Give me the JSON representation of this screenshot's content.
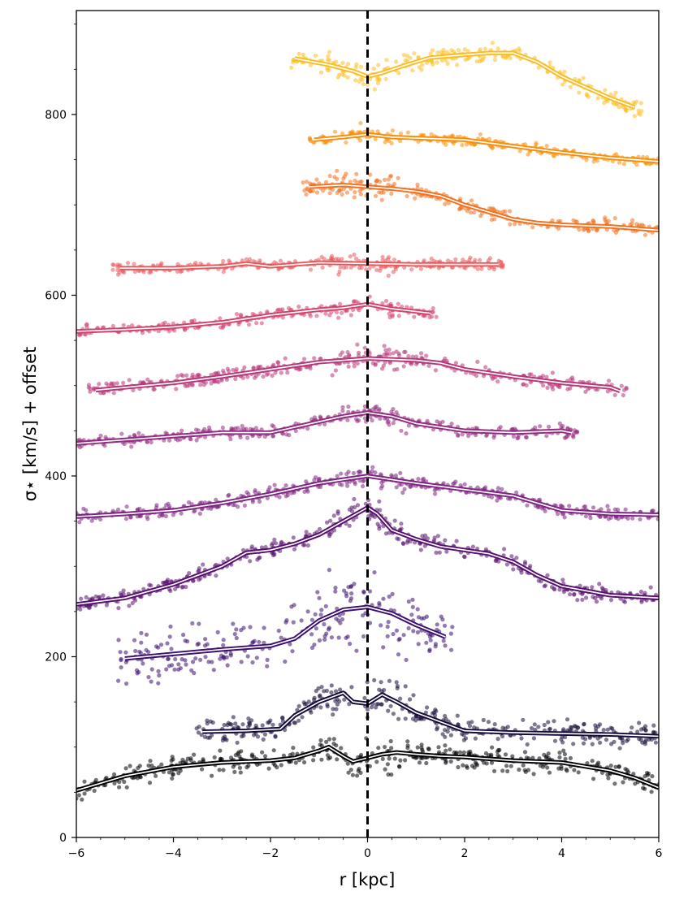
{
  "chart_data": {
    "type": "line",
    "title": "",
    "xlabel": "r [kpc]",
    "ylabel": "σ⋆ [km/s] + offset",
    "xlim": [
      -6,
      6
    ],
    "ylim": [
      0,
      915
    ],
    "xticks": [
      -6,
      -4,
      -2,
      0,
      2,
      4,
      6
    ],
    "xtick_labels": [
      "−6",
      "−4",
      "−2",
      "0",
      "2",
      "4",
      "6"
    ],
    "yticks": [
      0,
      200,
      400,
      600,
      800
    ],
    "ytick_labels": [
      "0",
      "200",
      "400",
      "600",
      "800"
    ],
    "vline": {
      "x": 0,
      "style": "dashed",
      "color": "#000000"
    },
    "series": [
      {
        "name": "profile-1",
        "color": "#000004",
        "profile": [
          [
            -6,
            52
          ],
          [
            -5,
            68
          ],
          [
            -4,
            78
          ],
          [
            -3,
            83
          ],
          [
            -2,
            85
          ],
          [
            -1.5,
            88
          ],
          [
            -1,
            96
          ],
          [
            -0.8,
            100
          ],
          [
            -0.5,
            90
          ],
          [
            -0.3,
            84
          ],
          [
            0,
            88
          ],
          [
            0.3,
            92
          ],
          [
            0.6,
            94
          ],
          [
            1,
            92
          ],
          [
            1.5,
            90
          ],
          [
            2,
            89
          ],
          [
            3,
            85
          ],
          [
            4,
            83
          ],
          [
            5,
            74
          ],
          [
            5.5,
            66
          ],
          [
            6,
            55
          ]
        ],
        "scatter_spread": 10
      },
      {
        "name": "profile-2",
        "color": "#160b39",
        "profile": [
          [
            -3.4,
            117
          ],
          [
            -2.5,
            118
          ],
          [
            -1.8,
            120
          ],
          [
            -1.5,
            135
          ],
          [
            -1,
            150
          ],
          [
            -0.5,
            160
          ],
          [
            -0.3,
            150
          ],
          [
            0,
            148
          ],
          [
            0.3,
            158
          ],
          [
            0.6,
            150
          ],
          [
            1,
            138
          ],
          [
            1.5,
            128
          ],
          [
            2,
            118
          ],
          [
            3,
            116
          ],
          [
            4,
            115
          ],
          [
            5,
            114
          ],
          [
            6,
            112
          ]
        ],
        "scatter_spread": 12
      },
      {
        "name": "profile-3",
        "color": "#3b0f70",
        "profile": [
          [
            -5,
            198
          ],
          [
            -4,
            203
          ],
          [
            -3,
            208
          ],
          [
            -2,
            212
          ],
          [
            -1.5,
            220
          ],
          [
            -1,
            240
          ],
          [
            -0.5,
            252
          ],
          [
            0,
            255
          ],
          [
            0.5,
            248
          ],
          [
            1,
            235
          ],
          [
            1.6,
            222
          ]
        ],
        "scatter_spread": 25
      },
      {
        "name": "profile-4",
        "color": "#57106e",
        "profile": [
          [
            -6,
            258
          ],
          [
            -5,
            265
          ],
          [
            -4,
            280
          ],
          [
            -3,
            300
          ],
          [
            -2.5,
            315
          ],
          [
            -2,
            318
          ],
          [
            -1.5,
            325
          ],
          [
            -1,
            335
          ],
          [
            -0.5,
            350
          ],
          [
            0,
            365
          ],
          [
            0.2,
            358
          ],
          [
            0.5,
            340
          ],
          [
            1,
            330
          ],
          [
            1.5,
            322
          ],
          [
            2,
            318
          ],
          [
            2.5,
            314
          ],
          [
            3,
            305
          ],
          [
            3.5,
            290
          ],
          [
            4,
            278
          ],
          [
            5,
            268
          ],
          [
            6,
            265
          ]
        ],
        "scatter_spread": 8
      },
      {
        "name": "profile-5",
        "color": "#7e2482",
        "profile": [
          [
            -6,
            355
          ],
          [
            -5,
            358
          ],
          [
            -4,
            362
          ],
          [
            -3,
            370
          ],
          [
            -2,
            380
          ],
          [
            -1,
            392
          ],
          [
            -0.5,
            396
          ],
          [
            0,
            400
          ],
          [
            0.5,
            396
          ],
          [
            1,
            392
          ],
          [
            2,
            385
          ],
          [
            3,
            378
          ],
          [
            4,
            362
          ],
          [
            5,
            358
          ],
          [
            6,
            357
          ]
        ],
        "scatter_spread": 6
      },
      {
        "name": "profile-6",
        "color": "#932b80",
        "profile": [
          [
            -6,
            436
          ],
          [
            -5,
            440
          ],
          [
            -4,
            444
          ],
          [
            -3,
            448
          ],
          [
            -2,
            448
          ],
          [
            -1,
            460
          ],
          [
            -0.5,
            466
          ],
          [
            0,
            470
          ],
          [
            0.5,
            466
          ],
          [
            1,
            458
          ],
          [
            2,
            450
          ],
          [
            3,
            448
          ],
          [
            4,
            450
          ],
          [
            4.2,
            448
          ]
        ],
        "scatter_spread": 6
      },
      {
        "name": "profile-7",
        "color": "#b73779",
        "profile": [
          [
            -5.6,
            495
          ],
          [
            -5,
            498
          ],
          [
            -4,
            503
          ],
          [
            -3,
            510
          ],
          [
            -2,
            518
          ],
          [
            -1,
            526
          ],
          [
            0,
            530
          ],
          [
            1,
            528
          ],
          [
            1.5,
            525
          ],
          [
            2,
            518
          ],
          [
            3,
            510
          ],
          [
            4,
            503
          ],
          [
            5,
            498
          ],
          [
            5.2,
            494
          ]
        ],
        "scatter_spread": 7
      },
      {
        "name": "profile-8",
        "color": "#d3436e",
        "profile": [
          [
            -6,
            560
          ],
          [
            -5,
            562
          ],
          [
            -4,
            565
          ],
          [
            -3,
            570
          ],
          [
            -2,
            578
          ],
          [
            -1,
            584
          ],
          [
            -0.5,
            586
          ],
          [
            0,
            590
          ],
          [
            0.5,
            585
          ],
          [
            1,
            582
          ],
          [
            1.3,
            580
          ]
        ],
        "scatter_spread": 5
      },
      {
        "name": "profile-9",
        "color": "#e8595e",
        "profile": [
          [
            -5.1,
            630
          ],
          [
            -4,
            630
          ],
          [
            -3,
            632
          ],
          [
            -2.5,
            635
          ],
          [
            -2,
            632
          ],
          [
            -1,
            636
          ],
          [
            0,
            635
          ],
          [
            1,
            634
          ],
          [
            2,
            634
          ],
          [
            2.7,
            634
          ]
        ],
        "scatter_spread": 5
      },
      {
        "name": "profile-10",
        "color": "#f1711f",
        "profile": [
          [
            -1.2,
            720
          ],
          [
            -0.5,
            722
          ],
          [
            0,
            720
          ],
          [
            0.5,
            718
          ],
          [
            1,
            715
          ],
          [
            1.5,
            710
          ],
          [
            2,
            700
          ],
          [
            2.5,
            692
          ],
          [
            3,
            684
          ],
          [
            3.5,
            680
          ],
          [
            4,
            678
          ],
          [
            5,
            676
          ],
          [
            6,
            672
          ]
        ],
        "scatter_spread": 7
      },
      {
        "name": "profile-11",
        "color": "#f98e09",
        "profile": [
          [
            -1.1,
            772
          ],
          [
            -0.5,
            775
          ],
          [
            0,
            778
          ],
          [
            0.5,
            775
          ],
          [
            1,
            774
          ],
          [
            2,
            772
          ],
          [
            3,
            765
          ],
          [
            4,
            758
          ],
          [
            5,
            752
          ],
          [
            6,
            748
          ]
        ],
        "scatter_spread": 5
      },
      {
        "name": "profile-12",
        "color": "#fbbd24",
        "profile": [
          [
            -1.5,
            862
          ],
          [
            -0.8,
            855
          ],
          [
            -0.3,
            848
          ],
          [
            0,
            842
          ],
          [
            0.3,
            846
          ],
          [
            0.8,
            855
          ],
          [
            1.3,
            863
          ],
          [
            2,
            866
          ],
          [
            2.5,
            868
          ],
          [
            3,
            868
          ],
          [
            3.5,
            858
          ],
          [
            4,
            842
          ],
          [
            4.5,
            830
          ],
          [
            5,
            818
          ],
          [
            5.5,
            808
          ]
        ],
        "scatter_spread": 8
      }
    ]
  }
}
